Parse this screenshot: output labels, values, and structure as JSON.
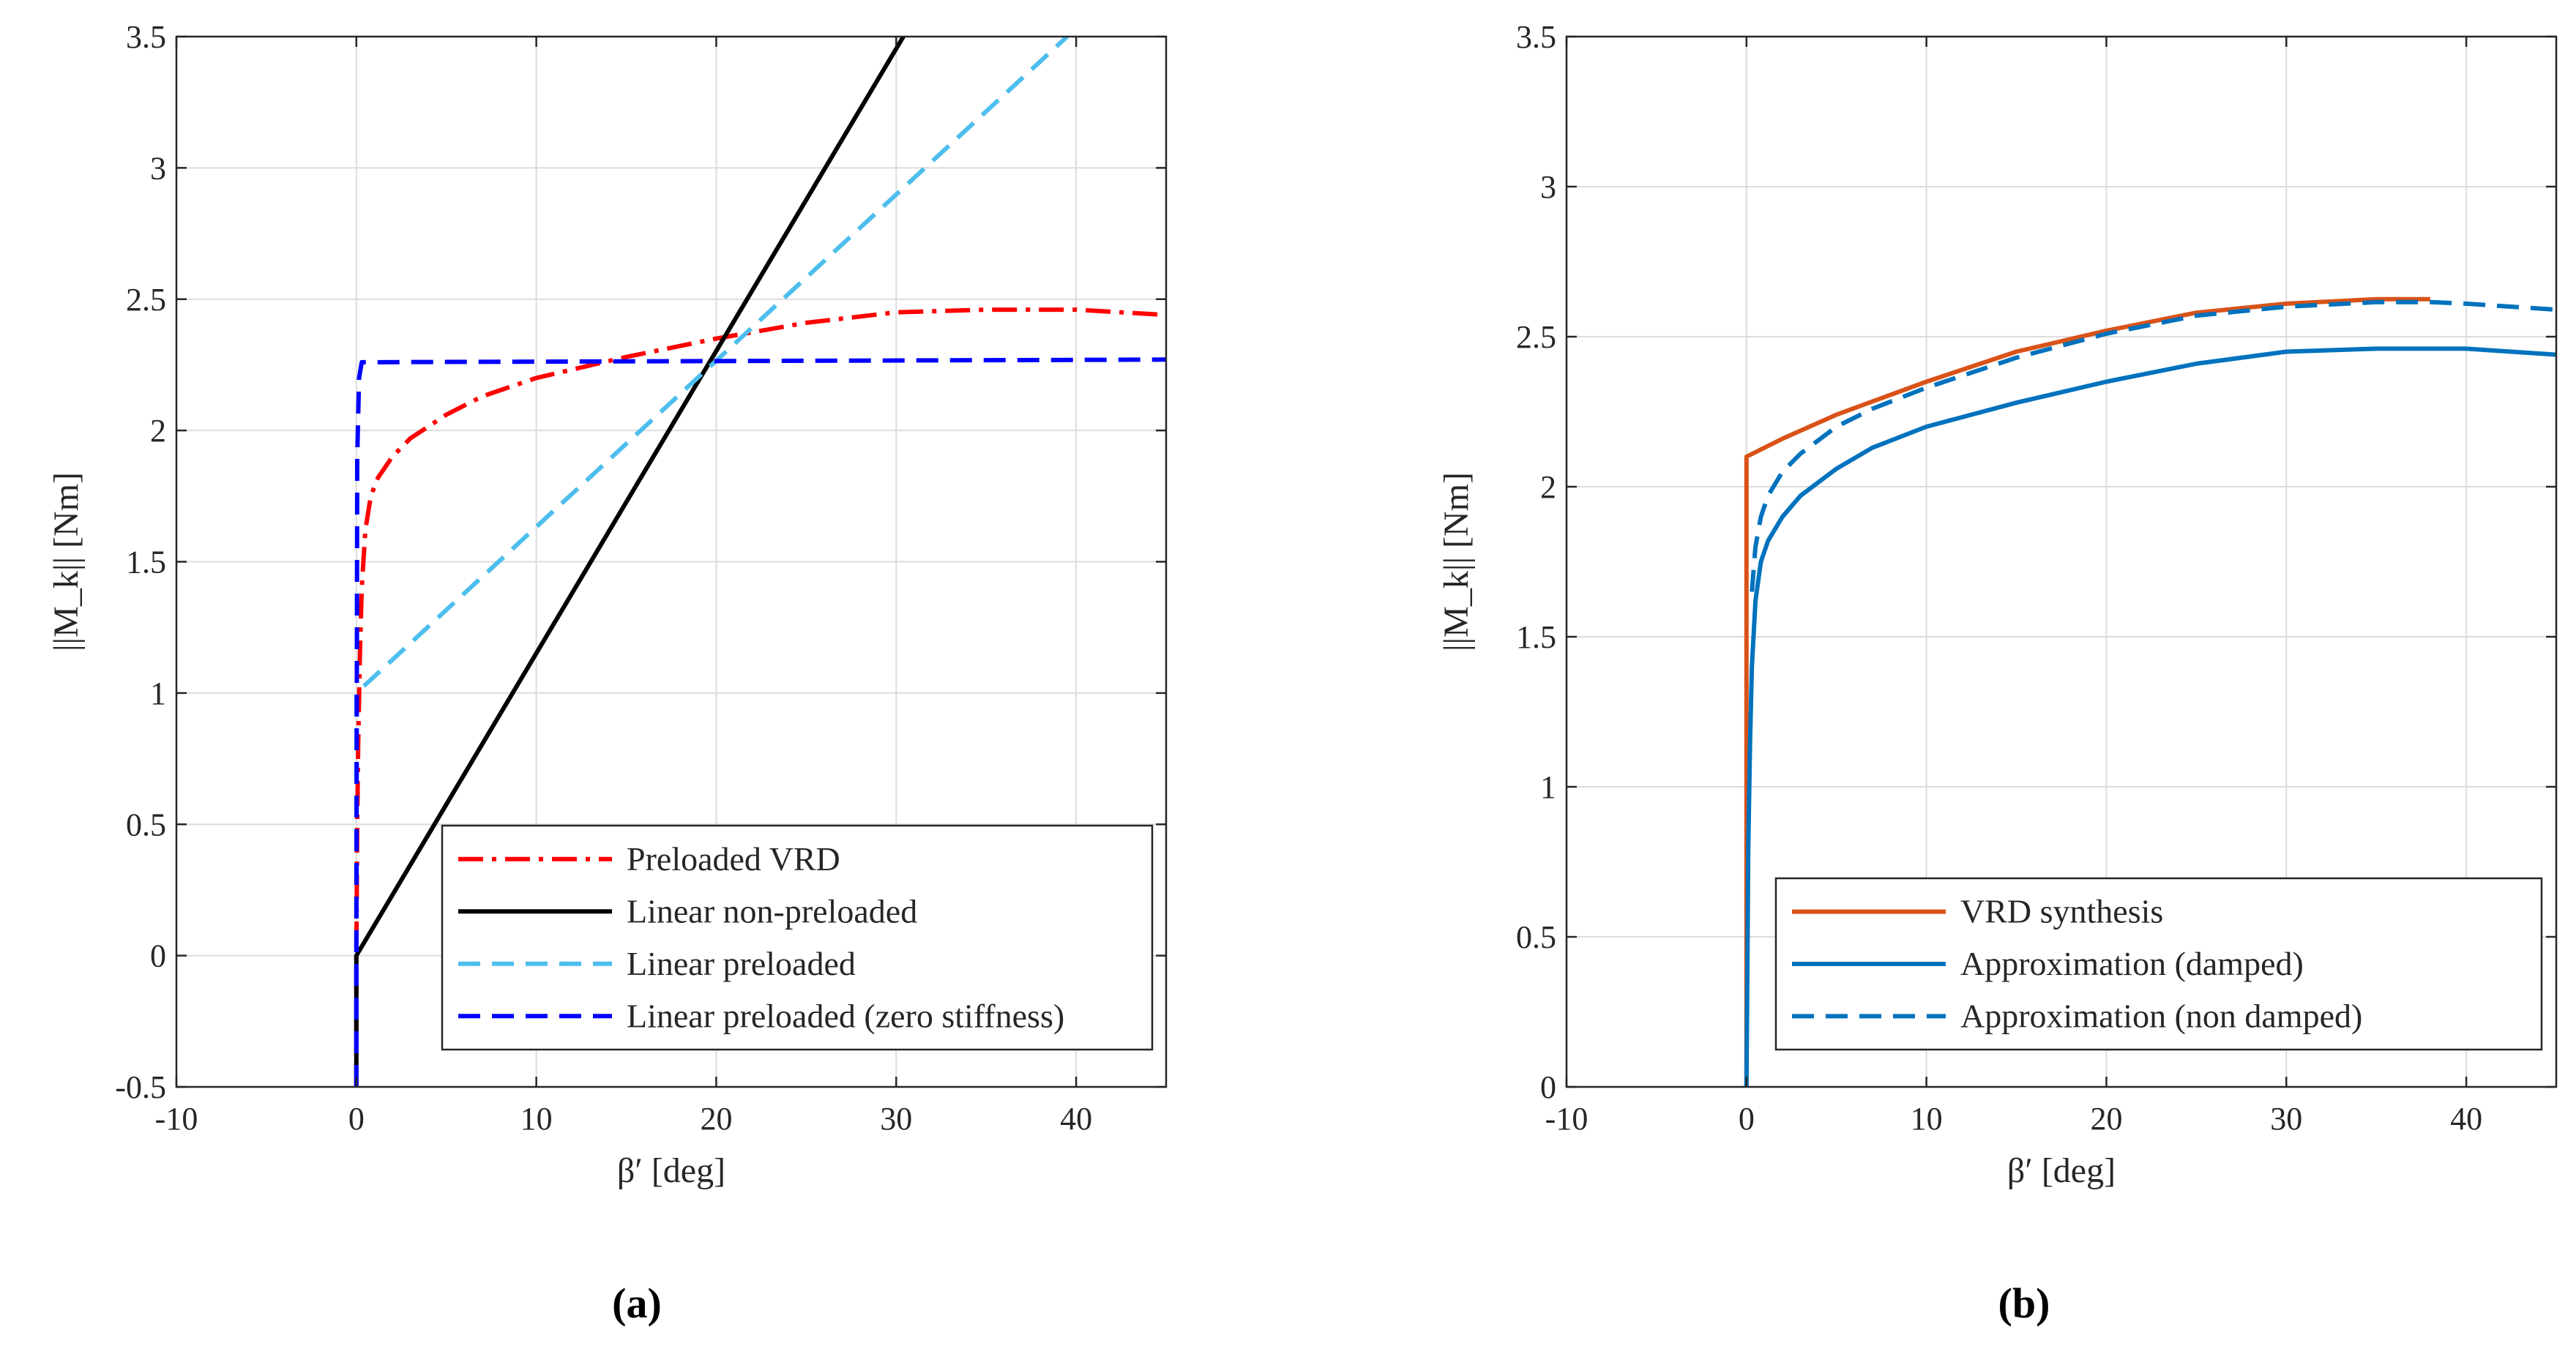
{
  "chart_data": [
    {
      "type": "line",
      "panel_label": "(a)",
      "xlabel": "β′ [deg]",
      "ylabel": "||M_k|| [Nm]",
      "xlim": [
        -10,
        45
      ],
      "ylim": [
        -0.5,
        3.5
      ],
      "xticks": [
        -10,
        0,
        10,
        20,
        30,
        40
      ],
      "yticks": [
        -0.5,
        0,
        0.5,
        1,
        1.5,
        2,
        2.5,
        3,
        3.5
      ],
      "grid": true,
      "legend_position": "bottom-right",
      "series": [
        {
          "name": "Preloaded VRD",
          "color": "#ff0000",
          "style": "dashdot",
          "x": [
            0,
            0,
            0.05,
            0.1,
            0.2,
            0.3,
            0.5,
            0.8,
            1.2,
            2,
            3,
            5,
            7,
            10,
            15,
            20,
            25,
            30,
            35,
            37,
            40,
            45
          ],
          "y": [
            -0.5,
            0,
            0.5,
            0.8,
            1.15,
            1.4,
            1.62,
            1.75,
            1.82,
            1.9,
            1.97,
            2.06,
            2.13,
            2.2,
            2.28,
            2.35,
            2.41,
            2.45,
            2.46,
            2.46,
            2.46,
            2.44
          ]
        },
        {
          "name": "Linear non-preloaded",
          "color": "#000000",
          "style": "solid",
          "x": [
            0,
            0,
            30.4
          ],
          "y": [
            -0.5,
            0,
            3.5
          ]
        },
        {
          "name": "Linear preloaded",
          "color": "#4dbeee",
          "style": "dashed",
          "x": [
            0,
            0,
            39.5
          ],
          "y": [
            -0.5,
            1.0,
            3.5
          ]
        },
        {
          "name": "Linear preloaded (zero stiffness)",
          "color": "#0000ff",
          "style": "dashed",
          "x": [
            0,
            0,
            0.05,
            0.15,
            0.3,
            45
          ],
          "y": [
            -0.5,
            0,
            1.9,
            2.2,
            2.26,
            2.27
          ]
        }
      ]
    },
    {
      "type": "line",
      "panel_label": "(b)",
      "xlabel": "β′ [deg]",
      "ylabel": "||M_k|| [Nm]",
      "xlim": [
        -10,
        45
      ],
      "ylim": [
        0,
        3.5
      ],
      "xticks": [
        -10,
        0,
        10,
        20,
        30,
        40
      ],
      "yticks": [
        0,
        0.5,
        1,
        1.5,
        2,
        2.5,
        3,
        3.5
      ],
      "grid": true,
      "legend_position": "bottom-right",
      "series": [
        {
          "name": "VRD synthesis",
          "color": "#d95319",
          "style": "solid",
          "x": [
            0,
            0,
            2,
            5,
            10,
            15,
            20,
            25,
            30,
            35,
            38
          ],
          "y": [
            0,
            2.1,
            2.16,
            2.24,
            2.35,
            2.45,
            2.52,
            2.58,
            2.61,
            2.625,
            2.625
          ]
        },
        {
          "name": "Approximation (damped)",
          "color": "#0072bd",
          "style": "solid",
          "x": [
            0,
            0.1,
            0.2,
            0.3,
            0.5,
            0.8,
            1.2,
            2,
            3,
            5,
            7,
            10,
            15,
            20,
            25,
            30,
            35,
            37,
            40,
            45
          ],
          "y": [
            0,
            0.8,
            1.15,
            1.4,
            1.62,
            1.75,
            1.82,
            1.9,
            1.97,
            2.06,
            2.13,
            2.2,
            2.28,
            2.35,
            2.41,
            2.45,
            2.46,
            2.46,
            2.46,
            2.44
          ]
        },
        {
          "name": "Approximation (non damped)",
          "color": "#0072bd",
          "style": "dashed",
          "x": [
            0.3,
            0.5,
            0.8,
            1.2,
            2,
            3,
            5,
            7,
            10,
            15,
            20,
            25,
            30,
            35,
            38,
            40,
            45
          ],
          "y": [
            1.65,
            1.8,
            1.9,
            1.97,
            2.05,
            2.11,
            2.2,
            2.26,
            2.33,
            2.43,
            2.51,
            2.57,
            2.6,
            2.615,
            2.615,
            2.61,
            2.59
          ]
        }
      ]
    }
  ]
}
